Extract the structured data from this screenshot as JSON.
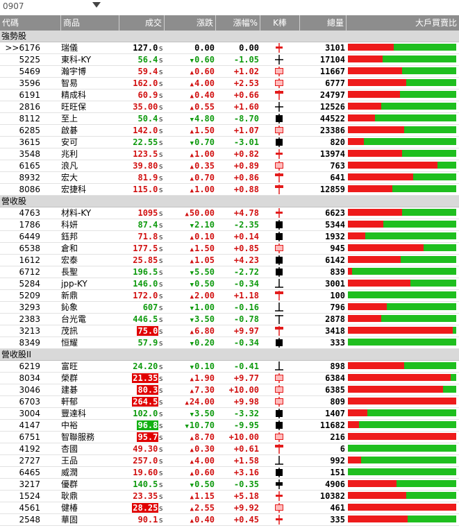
{
  "topbar": {
    "date": "0907"
  },
  "columns": {
    "code": "代碼",
    "name": "商品",
    "price": "成交",
    "chg": "漲跌",
    "pct": "漲幅%",
    "k": "K棒",
    "vol": "總量",
    "ratio": "大戶買賣比"
  },
  "groups": [
    {
      "title": "強勢股",
      "rows": [
        {
          "code": ">>6176",
          "name": "瑞儀",
          "price": "127.0",
          "suffix": "s",
          "chg": "0.00",
          "dir": "flat",
          "pct": "0.00",
          "k": "cross-red",
          "vol": "3101",
          "ratio": 0.42,
          "box": ""
        },
        {
          "code": "5225",
          "name": "東科-KY",
          "price": "56.4",
          "suffix": "s",
          "chg": "0.60",
          "dir": "down",
          "pct": "-1.05",
          "k": "cross-black",
          "vol": "17104",
          "ratio": 0.32,
          "box": ""
        },
        {
          "code": "5469",
          "name": "瀚宇博",
          "price": "59.4",
          "suffix": "s",
          "chg": "0.60",
          "dir": "up",
          "pct": "+1.02",
          "k": "up-hollow",
          "vol": "11667",
          "ratio": 0.5,
          "box": ""
        },
        {
          "code": "3596",
          "name": "智易",
          "price": "162.0",
          "suffix": "s",
          "chg": "4.00",
          "dir": "up",
          "pct": "+2.53",
          "k": "up-hollow",
          "vol": "6777",
          "ratio": 0.54,
          "box": ""
        },
        {
          "code": "6191",
          "name": "精成科",
          "price": "60.9",
          "suffix": "s",
          "chg": "0.40",
          "dir": "up",
          "pct": "+0.66",
          "k": "up-tbar",
          "vol": "24797",
          "ratio": 0.48,
          "box": ""
        },
        {
          "code": "2816",
          "name": "旺旺保",
          "price": "35.00",
          "suffix": "s",
          "chg": "0.55",
          "dir": "up",
          "pct": "+1.60",
          "k": "cross-black",
          "vol": "12526",
          "ratio": 0.31,
          "box": ""
        },
        {
          "code": "8112",
          "name": "至上",
          "price": "50.4",
          "suffix": "s",
          "chg": "4.80",
          "dir": "down",
          "pct": "-8.70",
          "k": "down-solid",
          "vol": "44522",
          "ratio": 0.25,
          "box": ""
        },
        {
          "code": "6285",
          "name": "啟碁",
          "price": "142.0",
          "suffix": "s",
          "chg": "1.50",
          "dir": "up",
          "pct": "+1.07",
          "k": "up-hollow",
          "vol": "23386",
          "ratio": 0.52,
          "box": ""
        },
        {
          "code": "3615",
          "name": "安可",
          "price": "22.55",
          "suffix": "s",
          "chg": "0.70",
          "dir": "down",
          "pct": "-3.01",
          "k": "down-solid",
          "vol": "820",
          "ratio": 0.15,
          "box": ""
        },
        {
          "code": "3548",
          "name": "兆利",
          "price": "123.5",
          "suffix": "s",
          "chg": "1.00",
          "dir": "up",
          "pct": "+0.82",
          "k": "cross-red",
          "vol": "13974",
          "ratio": 0.5,
          "box": ""
        },
        {
          "code": "6165",
          "name": "浪凡",
          "price": "39.80",
          "suffix": "s",
          "chg": "0.35",
          "dir": "up",
          "pct": "+0.89",
          "k": "up-hollow",
          "vol": "763",
          "ratio": 0.83,
          "box": ""
        },
        {
          "code": "8932",
          "name": "宏大",
          "price": "81.9",
          "suffix": "s",
          "chg": "0.70",
          "dir": "up",
          "pct": "+0.86",
          "k": "up-tbar",
          "vol": "641",
          "ratio": 0.6,
          "box": ""
        },
        {
          "code": "8086",
          "name": "宏捷科",
          "price": "115.0",
          "suffix": "s",
          "chg": "1.00",
          "dir": "up",
          "pct": "+0.88",
          "k": "up-tbar",
          "vol": "12859",
          "ratio": 0.41,
          "box": ""
        }
      ]
    },
    {
      "title": "營收股",
      "rows": [
        {
          "code": "4763",
          "name": "材料-KY",
          "price": "1095",
          "suffix": "s",
          "chg": "50.00",
          "dir": "up",
          "pct": "+4.78",
          "k": "cross-red",
          "vol": "6623",
          "ratio": 0.5,
          "box": ""
        },
        {
          "code": "1786",
          "name": "科妍",
          "price": "87.4",
          "suffix": "s",
          "chg": "2.10",
          "dir": "down",
          "pct": "-2.35",
          "k": "down-solid",
          "vol": "5344",
          "ratio": 0.33,
          "box": ""
        },
        {
          "code": "6449",
          "name": "鈺邦",
          "price": "71.8",
          "suffix": "s",
          "chg": "0.10",
          "dir": "up",
          "pct": "+0.14",
          "k": "down-solid",
          "vol": "1932",
          "ratio": 0.16,
          "box": ""
        },
        {
          "code": "6538",
          "name": "倉和",
          "price": "177.5",
          "suffix": "s",
          "chg": "1.50",
          "dir": "up",
          "pct": "+0.85",
          "k": "up-hollow",
          "vol": "945",
          "ratio": 0.7,
          "box": ""
        },
        {
          "code": "1612",
          "name": "宏泰",
          "price": "25.85",
          "suffix": "s",
          "chg": "1.05",
          "dir": "up",
          "pct": "+4.23",
          "k": "down-solid",
          "vol": "6142",
          "ratio": 0.49,
          "box": ""
        },
        {
          "code": "6712",
          "name": "長聖",
          "price": "196.5",
          "suffix": "s",
          "chg": "5.50",
          "dir": "down",
          "pct": "-2.72",
          "k": "down-solid",
          "vol": "839",
          "ratio": 0.04,
          "box": ""
        },
        {
          "code": "5284",
          "name": "jpp-KY",
          "price": "146.0",
          "suffix": "s",
          "chg": "0.50",
          "dir": "down",
          "pct": "-0.34",
          "k": "inv-t",
          "vol": "3001",
          "ratio": 0.58,
          "box": ""
        },
        {
          "code": "5209",
          "name": "新鼎",
          "price": "172.0",
          "suffix": "s",
          "chg": "2.00",
          "dir": "up",
          "pct": "+1.18",
          "k": "up-tbar",
          "vol": "100",
          "ratio": 0.0,
          "box": ""
        },
        {
          "code": "3293",
          "name": "鈊象",
          "price": "607",
          "suffix": "s",
          "chg": "1.00",
          "dir": "down",
          "pct": "-0.16",
          "k": "inv-t",
          "vol": "796",
          "ratio": 0.36,
          "box": ""
        },
        {
          "code": "2383",
          "name": "台光電",
          "price": "446.5",
          "suffix": "s",
          "chg": "3.50",
          "dir": "down",
          "pct": "-0.78",
          "k": "tbar-black",
          "vol": "2878",
          "ratio": 0.31,
          "box": ""
        },
        {
          "code": "3213",
          "name": "茂訊",
          "price": "75.0",
          "suffix": "s",
          "chg": "6.80",
          "dir": "up",
          "pct": "+9.97",
          "k": "up-tbar",
          "vol": "3418",
          "ratio": 0.97,
          "box": "red"
        },
        {
          "code": "8349",
          "name": "恒耀",
          "price": "57.9",
          "suffix": "s",
          "chg": "0.20",
          "dir": "down",
          "pct": "-0.34",
          "k": "down-solid",
          "vol": "333",
          "ratio": 0.0,
          "box": ""
        }
      ]
    },
    {
      "title": "營收股II",
      "rows": [
        {
          "code": "6219",
          "name": "富旺",
          "price": "24.20",
          "suffix": "s",
          "chg": "0.10",
          "dir": "down",
          "pct": "-0.41",
          "k": "inv-t",
          "vol": "898",
          "ratio": 0.52,
          "box": ""
        },
        {
          "code": "8034",
          "name": "榮群",
          "price": "21.35",
          "suffix": "s",
          "chg": "1.90",
          "dir": "up",
          "pct": "+9.77",
          "k": "up-hollow",
          "vol": "6384",
          "ratio": 0.95,
          "box": "red"
        },
        {
          "code": "3046",
          "name": "建碁",
          "price": "80.3",
          "suffix": "s",
          "chg": "7.30",
          "dir": "up",
          "pct": "+10.00",
          "k": "up-hollow",
          "vol": "6385",
          "ratio": 0.88,
          "box": "red"
        },
        {
          "code": "6703",
          "name": "軒郁",
          "price": "264.5",
          "suffix": "s",
          "chg": "24.00",
          "dir": "up",
          "pct": "+9.98",
          "k": "up-hollow",
          "vol": "809",
          "ratio": 1.0,
          "box": "red"
        },
        {
          "code": "3004",
          "name": "豐達科",
          "price": "102.0",
          "suffix": "s",
          "chg": "3.50",
          "dir": "down",
          "pct": "-3.32",
          "k": "down-solid",
          "vol": "1407",
          "ratio": 0.18,
          "box": ""
        },
        {
          "code": "4147",
          "name": "中裕",
          "price": "96.8",
          "suffix": "s",
          "chg": "10.70",
          "dir": "down",
          "pct": "-9.95",
          "k": "down-solid",
          "vol": "11682",
          "ratio": 0.1,
          "box": "green"
        },
        {
          "code": "6751",
          "name": "智聯服務",
          "price": "95.7",
          "suffix": "s",
          "chg": "8.70",
          "dir": "up",
          "pct": "+10.00",
          "k": "up-hollow",
          "vol": "216",
          "ratio": 1.0,
          "box": "red"
        },
        {
          "code": "4192",
          "name": "杏國",
          "price": "49.30",
          "suffix": "s",
          "chg": "0.30",
          "dir": "up",
          "pct": "+0.61",
          "k": "up-tbar",
          "vol": "6",
          "ratio": 0.0,
          "box": ""
        },
        {
          "code": "2727",
          "name": "王品",
          "price": "257.0",
          "suffix": "s",
          "chg": "4.00",
          "dir": "up",
          "pct": "+1.58",
          "k": "inv-t",
          "vol": "992",
          "ratio": 0.12,
          "box": ""
        },
        {
          "code": "6465",
          "name": "威潤",
          "price": "19.60",
          "suffix": "s",
          "chg": "0.60",
          "dir": "up",
          "pct": "+3.16",
          "k": "down-solid",
          "vol": "151",
          "ratio": 0.0,
          "box": ""
        },
        {
          "code": "3217",
          "name": "優群",
          "price": "140.5",
          "suffix": "s",
          "chg": "0.50",
          "dir": "down",
          "pct": "-0.35",
          "k": "cross-black-solid",
          "vol": "4906",
          "ratio": 0.45,
          "box": ""
        },
        {
          "code": "1524",
          "name": "耿鼎",
          "price": "23.35",
          "suffix": "s",
          "chg": "1.15",
          "dir": "up",
          "pct": "+5.18",
          "k": "cross-red",
          "vol": "10382",
          "ratio": 0.54,
          "box": ""
        },
        {
          "code": "4561",
          "name": "健椿",
          "price": "28.25",
          "suffix": "s",
          "chg": "2.55",
          "dir": "up",
          "pct": "+9.92",
          "k": "up-hollow",
          "vol": "461",
          "ratio": 1.0,
          "box": "red"
        },
        {
          "code": "2548",
          "name": "華固",
          "price": "90.1",
          "suffix": "s",
          "chg": "0.40",
          "dir": "up",
          "pct": "+0.45",
          "k": "cross-red",
          "vol": "335",
          "ratio": 0.55,
          "box": ""
        }
      ]
    }
  ]
}
